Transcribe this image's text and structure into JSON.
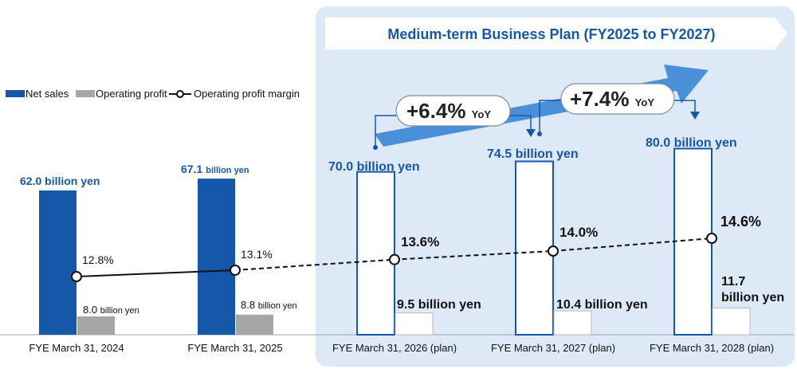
{
  "plan_banner": {
    "title": "Medium-term Business Plan (FY2025 to FY2027)"
  },
  "legend": {
    "net_sales": "Net sales",
    "operating_profit": "Operating profit",
    "operating_profit_margin": "Operating profit margin"
  },
  "yoy": [
    {
      "value": "+6.4%",
      "unit": "YoY"
    },
    {
      "value": "+7.4%",
      "unit": "YoY"
    }
  ],
  "colors": {
    "actual_bar": "#1557a8",
    "operating_profit_actual": "#a6a6a6",
    "plan_bar_border": "#1557a8",
    "plan_bar_fill": "#ffffff",
    "plan_panel": "#dde9f6",
    "arrow": "#4a90d9",
    "label_blue": "#1557a8"
  },
  "chart_data": {
    "type": "bar",
    "categories": [
      "FYE March 31, 2024",
      "FYE March 31, 2025",
      "FYE March 31, 2026 (plan)",
      "FYE March 31, 2027 (plan)",
      "FYE March 31, 2028 (plan)"
    ],
    "plan_flags": [
      false,
      false,
      true,
      true,
      true
    ],
    "series": [
      {
        "name": "Net sales",
        "values": [
          62.0,
          67.1,
          70.0,
          74.5,
          80.0
        ],
        "label_numbers": [
          "62.0",
          "67.1",
          "70.0",
          "74.5",
          "80.0"
        ],
        "label_unit": "billion yen"
      },
      {
        "name": "Operating profit",
        "values": [
          8.0,
          8.8,
          9.5,
          10.4,
          11.7
        ],
        "label_numbers": [
          "8.0",
          "8.8",
          "9.5",
          "10.4",
          "11.7"
        ],
        "label_unit": "billion yen"
      },
      {
        "name": "Operating profit margin",
        "values": [
          12.8,
          13.1,
          13.6,
          14.0,
          14.6
        ],
        "labels": [
          "12.8%",
          "13.1%",
          "13.6%",
          "14.0%",
          "14.6%"
        ]
      }
    ]
  }
}
